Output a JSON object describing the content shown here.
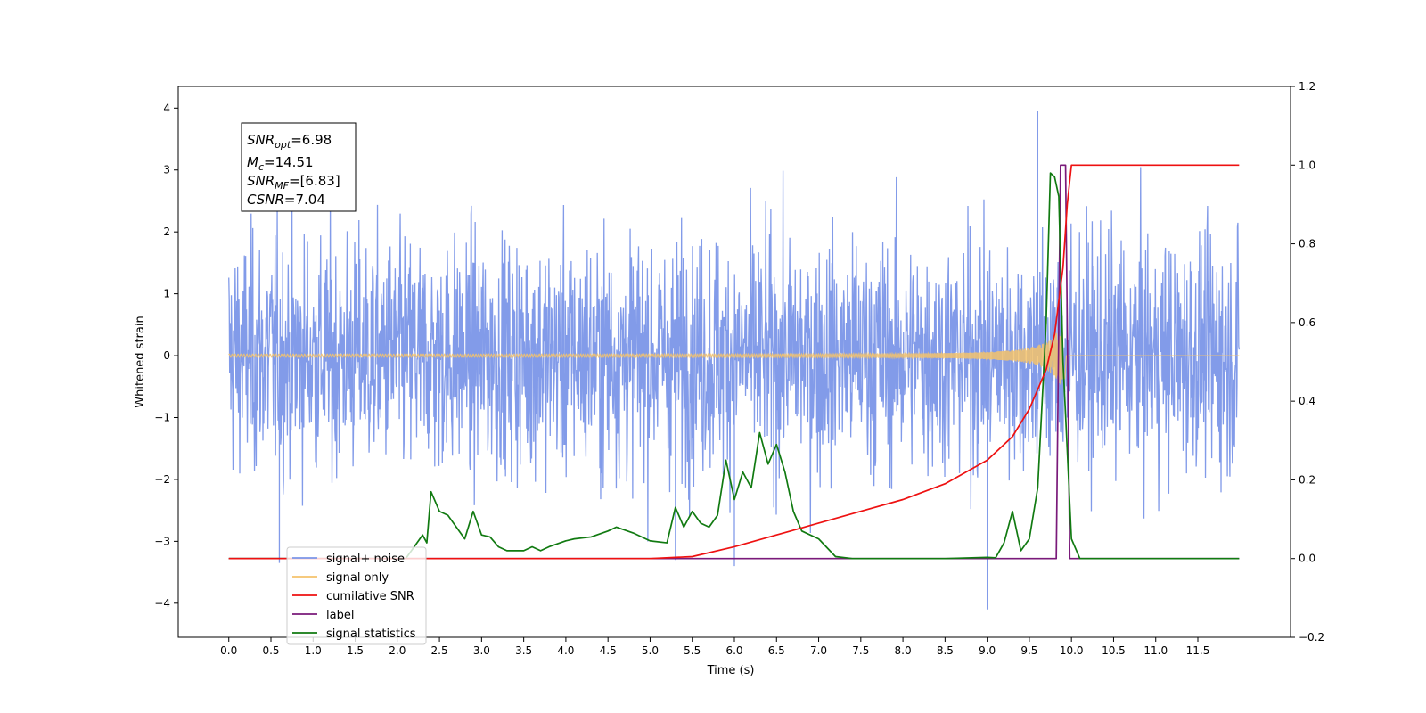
{
  "chart_data": {
    "type": "line",
    "title": "",
    "xlabel": "Time (s)",
    "ylabel": "Whitened strain",
    "y2label": "",
    "xlim": [
      -0.6,
      12.6
    ],
    "ylim": [
      -4.55,
      4.35
    ],
    "y2lim": [
      -0.2,
      1.2
    ],
    "xticks": [
      0.0,
      0.5,
      1.0,
      1.5,
      2.0,
      2.5,
      3.0,
      3.5,
      4.0,
      4.5,
      5.0,
      5.5,
      6.0,
      6.5,
      7.0,
      7.5,
      8.0,
      8.5,
      9.0,
      9.5,
      10.0,
      10.5,
      11.0,
      11.5
    ],
    "xtick_labels": [
      "0.0",
      "0.5",
      "1.0",
      "1.5",
      "2.0",
      "2.5",
      "3.0",
      "3.5",
      "4.0",
      "4.5",
      "5.0",
      "5.5",
      "6.0",
      "6.5",
      "7.0",
      "7.5",
      "8.0",
      "8.5",
      "9.0",
      "9.5",
      "10.0",
      "10.5",
      "11.0",
      "11.5"
    ],
    "yticks": [
      -4,
      -3,
      -2,
      -1,
      0,
      1,
      2,
      3,
      4
    ],
    "ytick_labels": [
      "−4",
      "−3",
      "−2",
      "−1",
      "0",
      "1",
      "2",
      "3",
      "4"
    ],
    "y2ticks": [
      -0.2,
      0.0,
      0.2,
      0.4,
      0.6,
      0.8,
      1.0,
      1.2
    ],
    "y2tick_labels": [
      "−0.2",
      "0.0",
      "0.2",
      "0.4",
      "0.6",
      "0.8",
      "1.0",
      "1.2"
    ],
    "legend_position": "lower-left",
    "annotation": {
      "lines": [
        {
          "base": "SNR",
          "sub": "opt",
          "rest": "=6.98"
        },
        {
          "base": "M",
          "sub": "c",
          "rest": "=14.51"
        },
        {
          "base": "SNR",
          "sub": "MF",
          "rest": "=[6.83]"
        },
        {
          "base": "CSNR",
          "sub": "",
          "rest": "=7.04"
        }
      ]
    },
    "series": [
      {
        "name": "signal+ noise",
        "axis": "left",
        "color": "#7b96e8",
        "x_range": [
          0.0,
          11.99
        ],
        "std": 0.95,
        "samples": 2400,
        "peaks": [
          [
            9.6,
            3.95
          ],
          [
            9.0,
            -4.1
          ],
          [
            0.6,
            -3.35
          ],
          [
            6.0,
            -3.4
          ],
          [
            5.3,
            -3.3
          ]
        ]
      },
      {
        "name": "signal only",
        "axis": "left",
        "color": "#f5c36b",
        "x_range": [
          0.0,
          11.99
        ],
        "chirp_end": 9.92,
        "max_amplitude": 0.95
      },
      {
        "name": "cumilative SNR",
        "axis": "right",
        "color": "#ee1111",
        "x": [
          0.0,
          5.0,
          5.5,
          6.0,
          6.5,
          7.0,
          7.5,
          8.0,
          8.5,
          9.0,
          9.3,
          9.5,
          9.7,
          9.8,
          9.9,
          9.95,
          10.0,
          11.99
        ],
        "values": [
          0.0,
          0.0,
          0.005,
          0.03,
          0.06,
          0.09,
          0.12,
          0.15,
          0.19,
          0.25,
          0.31,
          0.38,
          0.48,
          0.57,
          0.74,
          0.9,
          1.0,
          1.0
        ]
      },
      {
        "name": "label",
        "axis": "right",
        "color": "#7a1a7a",
        "x": [
          0.0,
          9.82,
          9.87,
          9.93,
          9.98,
          11.99
        ],
        "values": [
          0.0,
          0.0,
          1.0,
          1.0,
          0.0,
          0.0
        ]
      },
      {
        "name": "signal statistics",
        "axis": "right",
        "color": "#117a11",
        "x": [
          0.0,
          2.1,
          2.2,
          2.3,
          2.35,
          2.4,
          2.5,
          2.6,
          2.7,
          2.8,
          2.9,
          3.0,
          3.1,
          3.2,
          3.3,
          3.5,
          3.6,
          3.7,
          3.8,
          4.0,
          4.1,
          4.3,
          4.5,
          4.6,
          4.8,
          5.0,
          5.2,
          5.3,
          5.4,
          5.5,
          5.6,
          5.7,
          5.8,
          5.9,
          6.0,
          6.1,
          6.2,
          6.3,
          6.4,
          6.5,
          6.6,
          6.7,
          6.8,
          7.0,
          7.2,
          7.4,
          7.6,
          8.0,
          8.5,
          9.0,
          9.1,
          9.2,
          9.3,
          9.4,
          9.5,
          9.6,
          9.7,
          9.75,
          9.8,
          9.85,
          9.9,
          10.0,
          10.1,
          10.2,
          11.99
        ],
        "values": [
          0.0,
          0.0,
          0.03,
          0.06,
          0.04,
          0.17,
          0.12,
          0.11,
          0.08,
          0.05,
          0.12,
          0.06,
          0.055,
          0.03,
          0.02,
          0.02,
          0.03,
          0.02,
          0.03,
          0.045,
          0.05,
          0.055,
          0.07,
          0.08,
          0.065,
          0.045,
          0.04,
          0.13,
          0.08,
          0.12,
          0.09,
          0.08,
          0.11,
          0.25,
          0.15,
          0.22,
          0.18,
          0.32,
          0.24,
          0.29,
          0.22,
          0.12,
          0.07,
          0.05,
          0.005,
          0.0,
          0.0,
          0.0,
          0.0,
          0.003,
          0.002,
          0.04,
          0.12,
          0.02,
          0.05,
          0.18,
          0.6,
          0.98,
          0.97,
          0.92,
          0.5,
          0.05,
          0.0,
          0.0,
          0.0
        ]
      }
    ],
    "legend_entries": [
      {
        "name": "signal+ noise",
        "color": "#7b96e8"
      },
      {
        "name": "signal only",
        "color": "#f5c36b"
      },
      {
        "name": "cumilative SNR",
        "color": "#ee1111"
      },
      {
        "name": "label",
        "color": "#7a1a7a"
      },
      {
        "name": "signal statistics",
        "color": "#117a11"
      }
    ]
  }
}
